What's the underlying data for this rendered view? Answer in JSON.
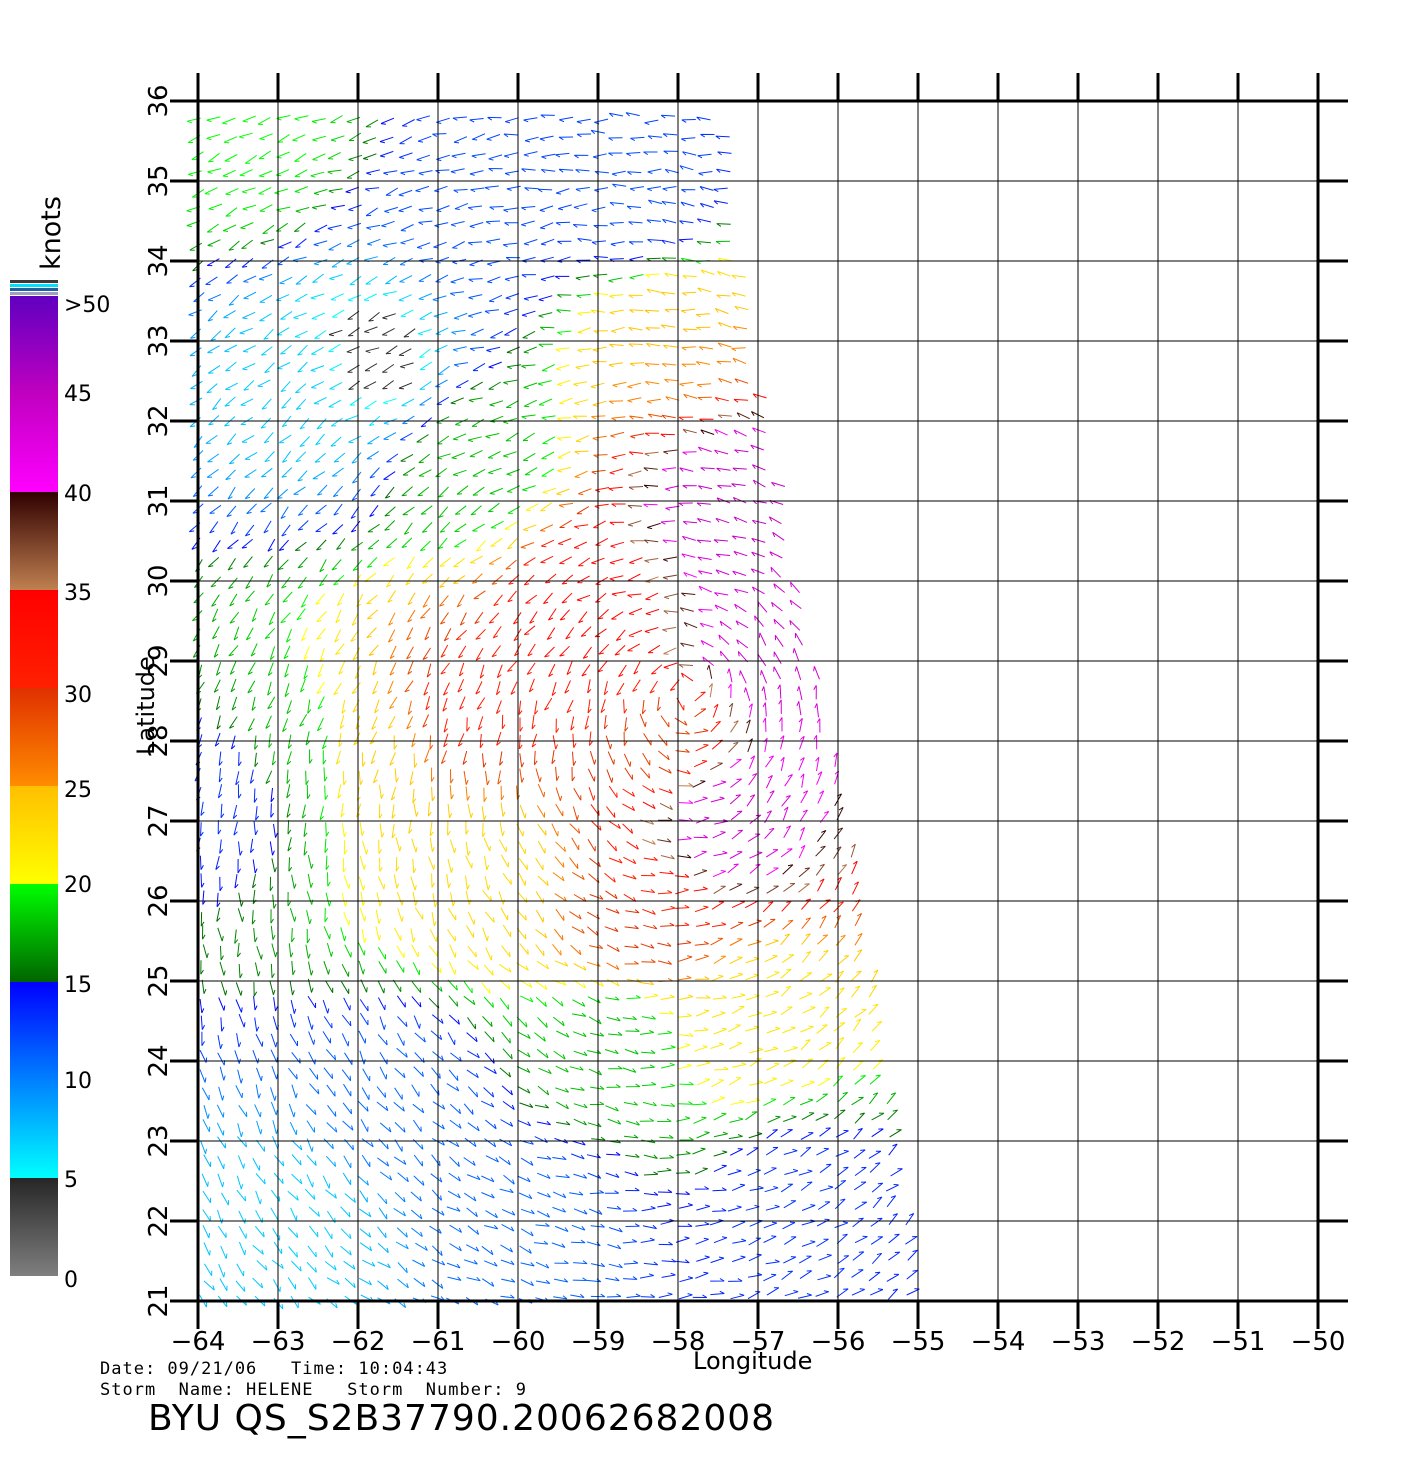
{
  "colorbar": {
    "unit": "knots",
    "labels": [
      ">50",
      "45",
      "40",
      "35",
      "30",
      "25",
      "20",
      "15",
      "10",
      "5",
      "0"
    ],
    "bands": [
      {
        "from": 0,
        "to": 5,
        "colors": [
          "#7f7f7f",
          "#262626"
        ]
      },
      {
        "from": 5,
        "to": 10,
        "colors": [
          "#00ffff",
          "#0080ff"
        ]
      },
      {
        "from": 10,
        "to": 15,
        "colors": [
          "#0080ff",
          "#0000ff"
        ]
      },
      {
        "from": 15,
        "to": 20,
        "colors": [
          "#006400",
          "#00ff00"
        ]
      },
      {
        "from": 20,
        "to": 25,
        "colors": [
          "#ffff00",
          "#ffbf00"
        ]
      },
      {
        "from": 25,
        "to": 30,
        "colors": [
          "#ff8c00",
          "#e03000"
        ]
      },
      {
        "from": 30,
        "to": 35,
        "colors": [
          "#ff2000",
          "#ff0000"
        ]
      },
      {
        "from": 35,
        "to": 40,
        "colors": [
          "#c08050",
          "#300000"
        ]
      },
      {
        "from": 40,
        "to": 45,
        "colors": [
          "#ff00ff",
          "#c000c0"
        ]
      },
      {
        "from": 45,
        "to": 50,
        "colors": [
          "#c000c0",
          "#6000c0"
        ]
      }
    ]
  },
  "axes": {
    "xlabel": "Longitude",
    "ylabel": "Latitude",
    "xlim": [
      -64,
      -50
    ],
    "ylim": [
      21,
      36
    ],
    "xticks": [
      "−64",
      "−63",
      "−62",
      "−61",
      "−60",
      "−59",
      "−58",
      "−57",
      "−56",
      "−55",
      "−54",
      "−53",
      "−52",
      "−51",
      "−50"
    ],
    "yticks": [
      "21",
      "22",
      "23",
      "24",
      "25",
      "26",
      "27",
      "28",
      "29",
      "30",
      "31",
      "32",
      "33",
      "34",
      "35",
      "36"
    ]
  },
  "swath": {
    "description_free": true,
    "west_lon": -64,
    "east_edge": [
      [
        36,
        -57.4
      ],
      [
        33,
        -57.0
      ],
      [
        29,
        -56.3
      ],
      [
        26,
        -55.7
      ],
      [
        21,
        -55.0
      ]
    ]
  },
  "wind_speed_regions": [
    {
      "lon": -59.0,
      "lat": 29.7,
      "speed": 34
    },
    {
      "lon": -60.6,
      "lat": 28.5,
      "speed": 31
    },
    {
      "lon": -58.2,
      "lat": 28.0,
      "speed": 29
    },
    {
      "lon": -56.8,
      "lat": 29.0,
      "speed": 44
    },
    {
      "lon": -57.2,
      "lat": 31.0,
      "speed": 45
    },
    {
      "lon": -57.5,
      "lat": 27.0,
      "speed": 44
    },
    {
      "lon": -58.5,
      "lat": 25.8,
      "speed": 30
    },
    {
      "lon": -61.8,
      "lat": 28.0,
      "speed": 24
    },
    {
      "lon": -60.5,
      "lat": 26.5,
      "speed": 23
    },
    {
      "lon": -62.8,
      "lat": 28.0,
      "speed": 18
    },
    {
      "lon": -63.6,
      "lat": 27.5,
      "speed": 13
    },
    {
      "lon": -62.5,
      "lat": 32.5,
      "speed": 7
    },
    {
      "lon": -61.8,
      "lat": 32.8,
      "speed": 4
    },
    {
      "lon": -60.5,
      "lat": 34.5,
      "speed": 12
    },
    {
      "lon": -58.5,
      "lat": 34.8,
      "speed": 12
    },
    {
      "lon": -63.3,
      "lat": 35.5,
      "speed": 20
    },
    {
      "lon": -60.5,
      "lat": 31.5,
      "speed": 18
    },
    {
      "lon": -58.0,
      "lat": 33.0,
      "speed": 25
    },
    {
      "lon": -59.0,
      "lat": 24.3,
      "speed": 18
    },
    {
      "lon": -57.0,
      "lat": 24.5,
      "speed": 22
    },
    {
      "lon": -61.5,
      "lat": 23.5,
      "speed": 11
    },
    {
      "lon": -62.8,
      "lat": 22.0,
      "speed": 7
    },
    {
      "lon": -60.0,
      "lat": 22.0,
      "speed": 11
    },
    {
      "lon": -56.5,
      "lat": 22.2,
      "speed": 13
    }
  ],
  "storm_center": {
    "lon": -57.8,
    "lat": 28.9
  },
  "footer": {
    "date_line": "Date: 09/21/06   Time: 10:04:43",
    "storm_line": "Storm  Name: HELENE   Storm  Number: 9",
    "file_id": "BYU  QS_S2B37790.20062682008"
  }
}
